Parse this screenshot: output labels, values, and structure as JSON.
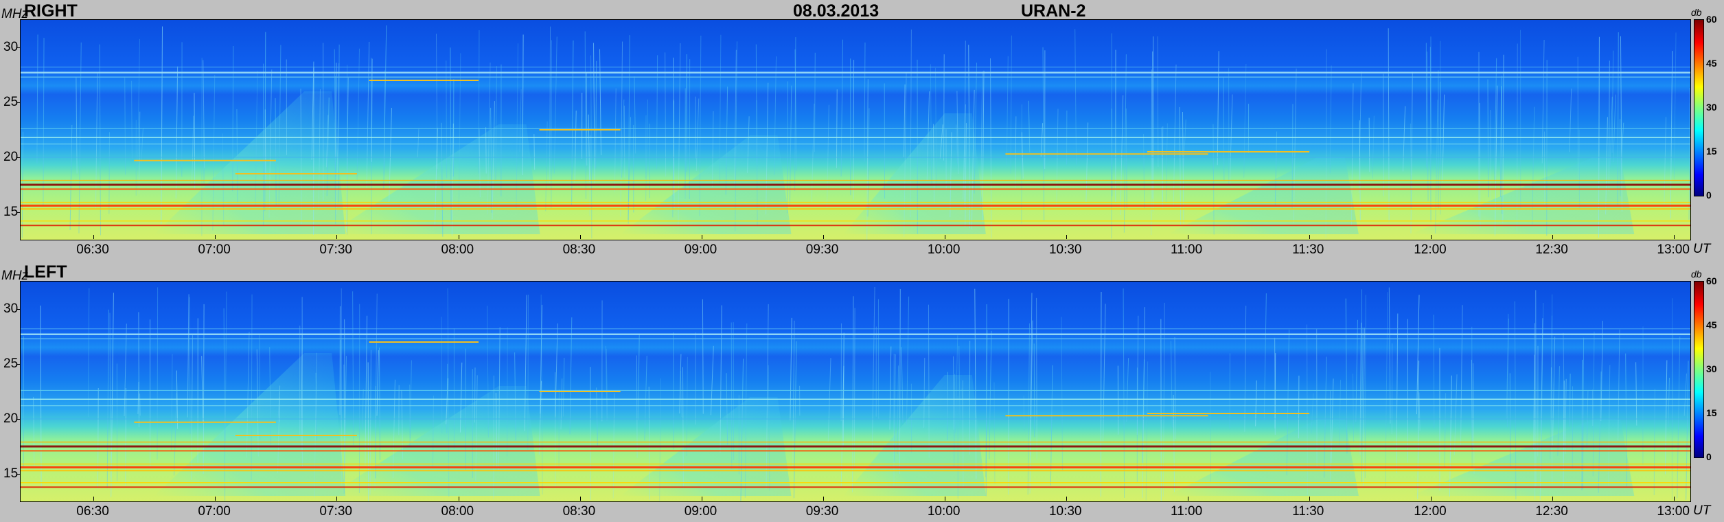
{
  "header": {
    "date": "08.03.2013",
    "instrument": "URAN-2"
  },
  "chart_data": [
    {
      "type": "heatmap",
      "title": "RIGHT",
      "ylabel": "MHz",
      "xlabel": "UT",
      "x_ticks": [
        "06:30",
        "07:00",
        "07:30",
        "08:00",
        "08:30",
        "09:00",
        "09:30",
        "10:00",
        "10:30",
        "11:00",
        "11:30",
        "12:00",
        "12:30",
        "13:00"
      ],
      "x_range": [
        "06:12",
        "13:04"
      ],
      "y_ticks": [
        15,
        20,
        25,
        30
      ],
      "ylim": [
        12.5,
        32.5
      ],
      "colorbar": {
        "label": "db",
        "ticks": [
          0,
          15,
          30,
          45,
          60
        ],
        "range": [
          0,
          60
        ],
        "colormap": "jet"
      }
    },
    {
      "type": "heatmap",
      "title": "LEFT",
      "ylabel": "MHz",
      "xlabel": "UT",
      "x_ticks": [
        "06:30",
        "07:00",
        "07:30",
        "08:00",
        "08:30",
        "09:00",
        "09:30",
        "10:00",
        "10:30",
        "11:00",
        "11:30",
        "12:00",
        "12:30",
        "13:00"
      ],
      "x_range": [
        "06:12",
        "13:04"
      ],
      "y_ticks": [
        15,
        20,
        25,
        30
      ],
      "ylim": [
        12.5,
        32.5
      ],
      "colorbar": {
        "label": "db",
        "ticks": [
          0,
          15,
          30,
          45,
          60
        ],
        "range": [
          0,
          60
        ],
        "colormap": "jet"
      }
    }
  ]
}
